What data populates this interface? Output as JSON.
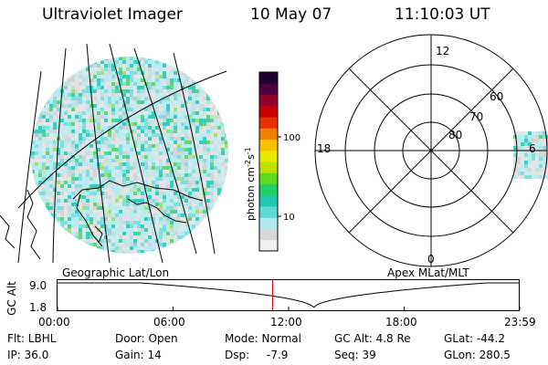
{
  "header": {
    "instrument": "Ultraviolet Imager",
    "date": "10 May 07",
    "time": "11:10:03 UT"
  },
  "colorbar": {
    "unit_label": "photon cm",
    "unit_sup": "-2",
    "unit_s": "s",
    "unit_sup2": "-1",
    "ticks": [
      "100",
      "10"
    ],
    "tick_values": [
      100,
      10
    ],
    "colors": [
      "#f0f0f0",
      "#d8d8d8",
      "#b0e8ec",
      "#60d8d8",
      "#20c8b0",
      "#20d060",
      "#60d820",
      "#c0e000",
      "#e8e800",
      "#f8c000",
      "#f08000",
      "#e83000",
      "#c80000",
      "#900030",
      "#500040",
      "#200030"
    ]
  },
  "geo_panel": {
    "label": "Geographic Lat/Lon"
  },
  "polar_panel": {
    "label": "Apex MLat/MLT",
    "mlt_labels": {
      "top": "12",
      "bottom": "0",
      "left": "18",
      "right": "6"
    },
    "lat_labels": [
      "60",
      "70",
      "80"
    ]
  },
  "timeline": {
    "ylabel": "GC Alt",
    "yticks": [
      "9.0",
      "1.8"
    ],
    "xticks": [
      "00:00",
      "06:00",
      "12:00",
      "18:00",
      "23:59"
    ],
    "current_time_hours": 11.17
  },
  "info": {
    "flt": "Flt: LBHL",
    "ip": "IP: 36.0",
    "door": "Door: Open",
    "gain": "Gain: 14",
    "mode": "Mode: Normal",
    "dsp_label": "Dsp:",
    "dsp_value": "-7.9",
    "gcalt": "GC Alt: 4.8 Re",
    "seq": "Seq: 39",
    "glat": "GLat: -44.2",
    "glon": "GLon: 280.5"
  }
}
